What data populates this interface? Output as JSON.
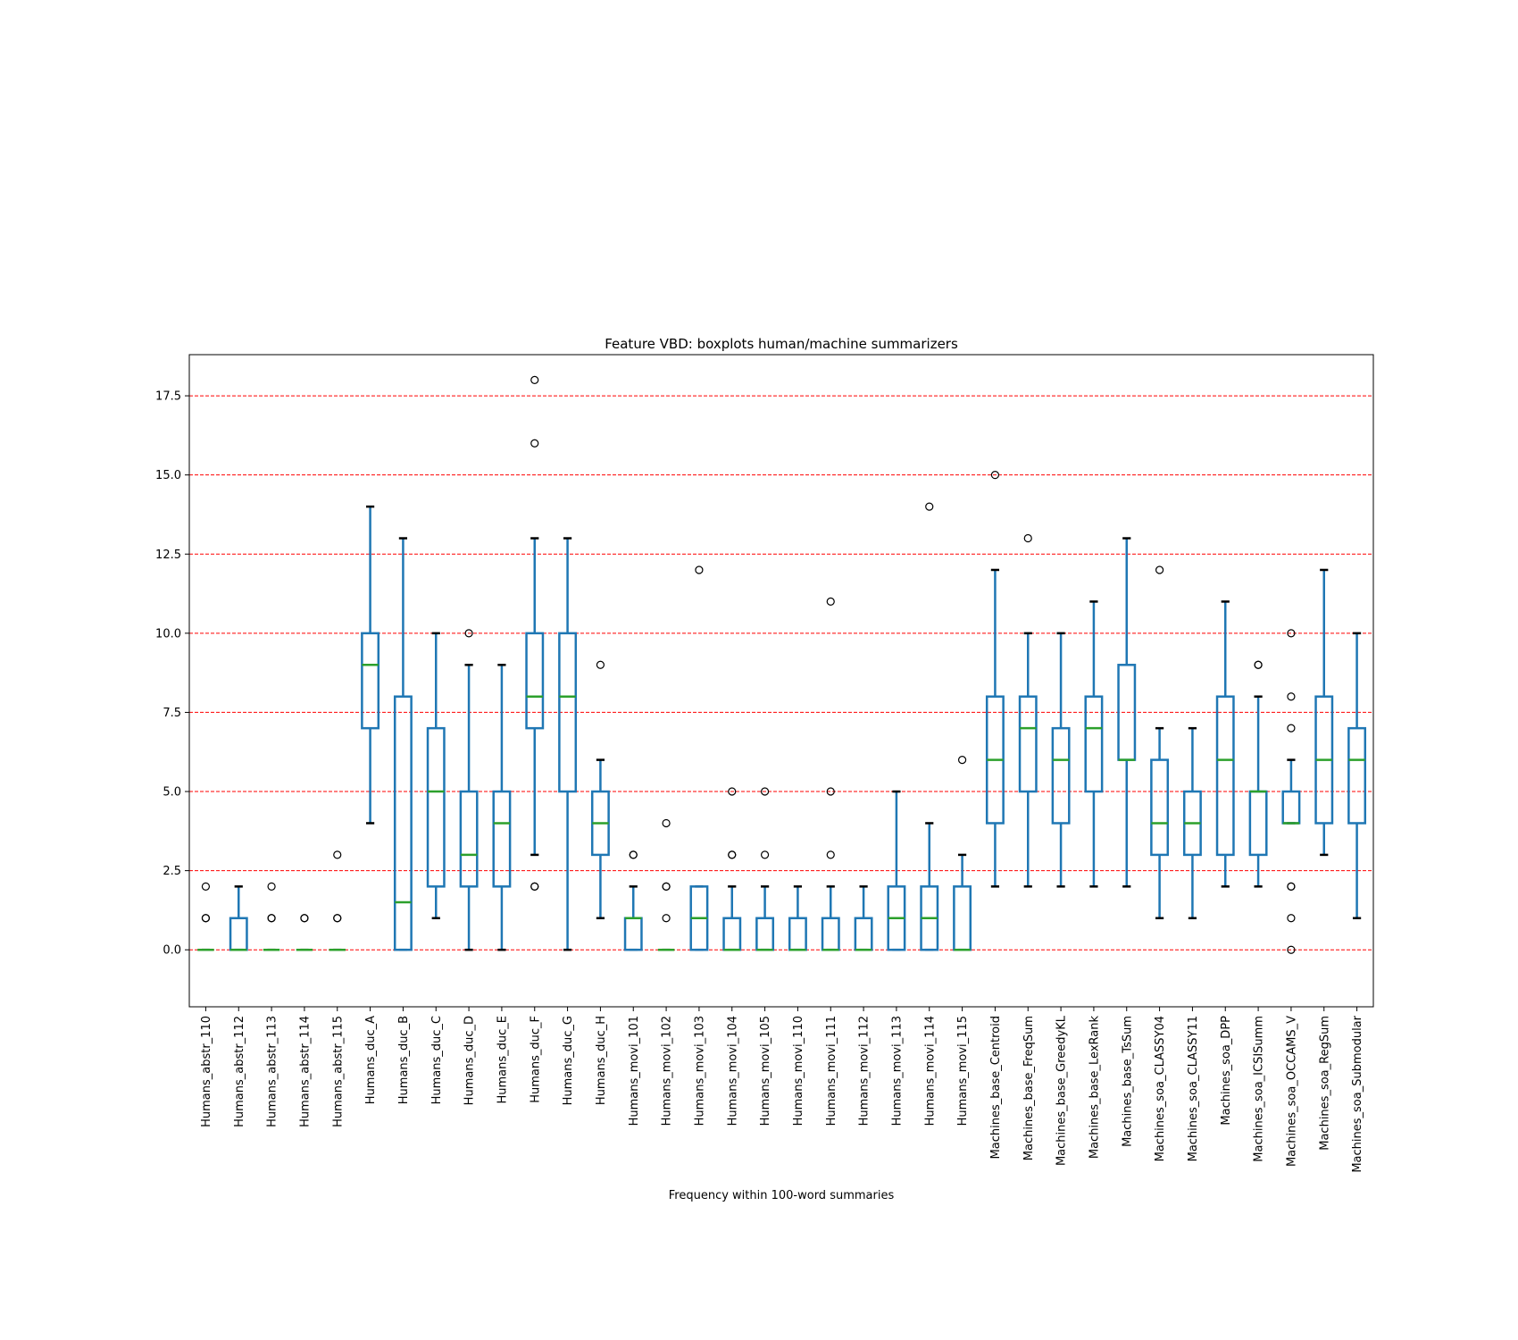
{
  "chart_data": {
    "type": "box",
    "title": "Feature VBD: boxplots human/machine summarizers",
    "xlabel": "Frequency within 100-word summaries",
    "ylabel": "",
    "ylim": [
      -1.8,
      18.8
    ],
    "yticks": [
      0.0,
      2.5,
      5.0,
      7.5,
      10.0,
      12.5,
      15.0,
      17.5
    ],
    "ytick_labels": [
      "0.0",
      "2.5",
      "5.0",
      "7.5",
      "10.0",
      "12.5",
      "15.0",
      "17.5"
    ],
    "grid": "horizontal dashed",
    "colors": {
      "box": "#1f77b4",
      "median": "#2ca02c",
      "grid": "#ff0000",
      "cap": "#000000",
      "outlier": "#000000"
    },
    "categories": [
      "Humans_abstr_110",
      "Humans_abstr_112",
      "Humans_abstr_113",
      "Humans_abstr_114",
      "Humans_abstr_115",
      "Humans_duc_A",
      "Humans_duc_B",
      "Humans_duc_C",
      "Humans_duc_D",
      "Humans_duc_E",
      "Humans_duc_F",
      "Humans_duc_G",
      "Humans_duc_H",
      "Humans_movi_101",
      "Humans_movi_102",
      "Humans_movi_103",
      "Humans_movi_104",
      "Humans_movi_105",
      "Humans_movi_110",
      "Humans_movi_111",
      "Humans_movi_112",
      "Humans_movi_113",
      "Humans_movi_114",
      "Humans_movi_115",
      "Machines_base_Centroid",
      "Machines_base_FreqSum",
      "Machines_base_GreedyKL",
      "Machines_base_LexRank",
      "Machines_base_TsSum",
      "Machines_soa_CLASSY04",
      "Machines_soa_CLASSY11",
      "Machines_soa_DPP",
      "Machines_soa_ICSISumm",
      "Machines_soa_OCCAMS_V",
      "Machines_soa_RegSum",
      "Machines_soa_Submodular"
    ],
    "boxes": [
      {
        "whislo": 0,
        "q1": 0,
        "med": 0,
        "q3": 0,
        "whishi": 0,
        "fliers": [
          1,
          1,
          2
        ]
      },
      {
        "whislo": 0,
        "q1": 0,
        "med": 0,
        "q3": 1,
        "whishi": 2,
        "fliers": []
      },
      {
        "whislo": 0,
        "q1": 0,
        "med": 0,
        "q3": 0,
        "whishi": 0,
        "fliers": [
          1,
          1,
          2
        ]
      },
      {
        "whislo": 0,
        "q1": 0,
        "med": 0,
        "q3": 0,
        "whishi": 0,
        "fliers": [
          1,
          1
        ]
      },
      {
        "whislo": 0,
        "q1": 0,
        "med": 0,
        "q3": 0,
        "whishi": 0,
        "fliers": [
          1,
          1,
          3
        ]
      },
      {
        "whislo": 4,
        "q1": 7,
        "med": 9,
        "q3": 10,
        "whishi": 14,
        "fliers": []
      },
      {
        "whislo": 0,
        "q1": 0,
        "med": 1.5,
        "q3": 8,
        "whishi": 13,
        "fliers": []
      },
      {
        "whislo": 1,
        "q1": 2,
        "med": 5,
        "q3": 7,
        "whishi": 10,
        "fliers": []
      },
      {
        "whislo": 0,
        "q1": 2,
        "med": 3,
        "q3": 5,
        "whishi": 9,
        "fliers": [
          10
        ]
      },
      {
        "whislo": 0,
        "q1": 2,
        "med": 4,
        "q3": 5,
        "whishi": 9,
        "fliers": []
      },
      {
        "whislo": 3,
        "q1": 7,
        "med": 8,
        "q3": 10,
        "whishi": 13,
        "fliers": [
          2,
          2,
          16,
          18
        ]
      },
      {
        "whislo": 0,
        "q1": 5,
        "med": 8,
        "q3": 10,
        "whishi": 13,
        "fliers": []
      },
      {
        "whislo": 1,
        "q1": 3,
        "med": 4,
        "q3": 5,
        "whishi": 6,
        "fliers": [
          9
        ]
      },
      {
        "whislo": 0,
        "q1": 0,
        "med": 1,
        "q3": 1,
        "whishi": 2,
        "fliers": [
          3,
          3
        ]
      },
      {
        "whislo": 0,
        "q1": 0,
        "med": 0,
        "q3": 0,
        "whishi": 0,
        "fliers": [
          1,
          2,
          2,
          4
        ]
      },
      {
        "whislo": 0,
        "q1": 0,
        "med": 1,
        "q3": 2,
        "whishi": 2,
        "fliers": [
          12
        ]
      },
      {
        "whislo": 0,
        "q1": 0,
        "med": 0,
        "q3": 1,
        "whishi": 2,
        "fliers": [
          3,
          3,
          5
        ]
      },
      {
        "whislo": 0,
        "q1": 0,
        "med": 0,
        "q3": 1,
        "whishi": 2,
        "fliers": [
          3,
          5
        ]
      },
      {
        "whislo": 0,
        "q1": 0,
        "med": 0,
        "q3": 1,
        "whishi": 2,
        "fliers": []
      },
      {
        "whislo": 0,
        "q1": 0,
        "med": 0,
        "q3": 1,
        "whishi": 2,
        "fliers": [
          3,
          5,
          11
        ]
      },
      {
        "whislo": 0,
        "q1": 0,
        "med": 0,
        "q3": 1,
        "whishi": 2,
        "fliers": []
      },
      {
        "whislo": 0,
        "q1": 0,
        "med": 1,
        "q3": 2,
        "whishi": 5,
        "fliers": []
      },
      {
        "whislo": 0,
        "q1": 0,
        "med": 1,
        "q3": 2,
        "whishi": 4,
        "fliers": [
          14
        ]
      },
      {
        "whislo": 0,
        "q1": 0,
        "med": 0,
        "q3": 2,
        "whishi": 3,
        "fliers": [
          6
        ]
      },
      {
        "whislo": 2,
        "q1": 4,
        "med": 6,
        "q3": 8,
        "whishi": 12,
        "fliers": [
          15
        ]
      },
      {
        "whislo": 2,
        "q1": 5,
        "med": 7,
        "q3": 8,
        "whishi": 10,
        "fliers": [
          13
        ]
      },
      {
        "whislo": 2,
        "q1": 4,
        "med": 6,
        "q3": 7,
        "whishi": 10,
        "fliers": []
      },
      {
        "whislo": 2,
        "q1": 5,
        "med": 7,
        "q3": 8,
        "whishi": 11,
        "fliers": []
      },
      {
        "whislo": 2,
        "q1": 6,
        "med": 6,
        "q3": 9,
        "whishi": 13,
        "fliers": []
      },
      {
        "whislo": 1,
        "q1": 3,
        "med": 4,
        "q3": 6,
        "whishi": 7,
        "fliers": [
          12
        ]
      },
      {
        "whislo": 1,
        "q1": 3,
        "med": 4,
        "q3": 5,
        "whishi": 7,
        "fliers": []
      },
      {
        "whislo": 2,
        "q1": 3,
        "med": 6,
        "q3": 8,
        "whishi": 11,
        "fliers": []
      },
      {
        "whislo": 2,
        "q1": 3,
        "med": 5,
        "q3": 5,
        "whishi": 8,
        "fliers": [
          9,
          9
        ]
      },
      {
        "whislo": 4,
        "q1": 4,
        "med": 4,
        "q3": 5,
        "whishi": 6,
        "fliers": [
          0,
          1,
          2,
          2,
          7,
          8,
          10
        ]
      },
      {
        "whislo": 3,
        "q1": 4,
        "med": 6,
        "q3": 8,
        "whishi": 12,
        "fliers": []
      },
      {
        "whislo": 1,
        "q1": 4,
        "med": 6,
        "q3": 7,
        "whishi": 10,
        "fliers": []
      }
    ]
  }
}
